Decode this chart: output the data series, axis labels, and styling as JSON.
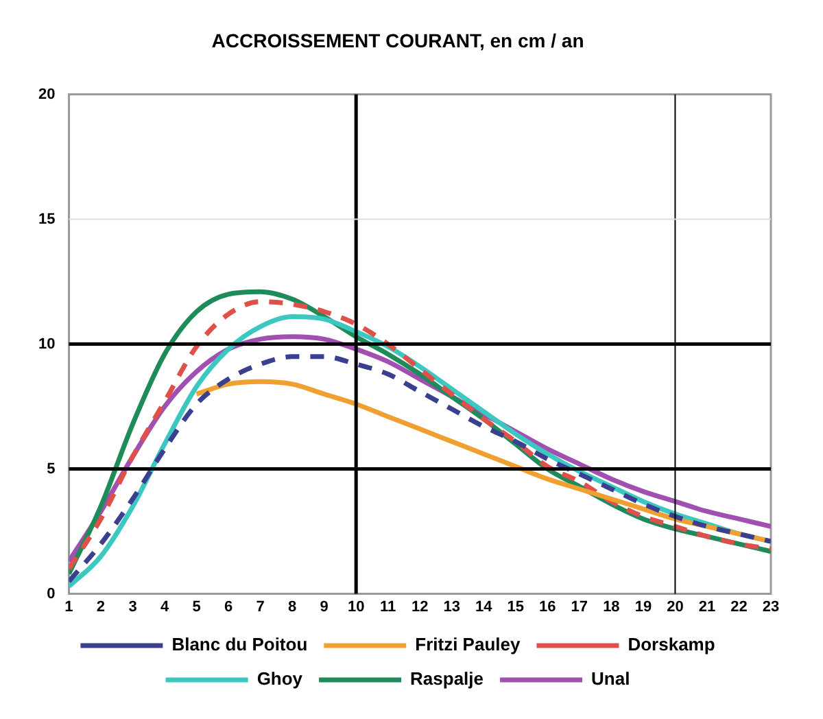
{
  "chart_data": {
    "type": "line",
    "title": "ACCROISSEMENT COURANT, en cm / an",
    "x": [
      1,
      2,
      3,
      4,
      5,
      6,
      7,
      8,
      9,
      10,
      11,
      12,
      13,
      14,
      15,
      16,
      17,
      18,
      19,
      20,
      21,
      22,
      23
    ],
    "xlim": [
      1,
      23
    ],
    "xticks": [
      1,
      2,
      3,
      4,
      5,
      6,
      7,
      8,
      9,
      10,
      11,
      12,
      13,
      14,
      15,
      16,
      17,
      18,
      19,
      20,
      21,
      22,
      23
    ],
    "ylim": [
      0,
      20
    ],
    "yticks": [
      0,
      5,
      10,
      15,
      20
    ],
    "legend": "bottom",
    "marker": "none",
    "ref_lines": [
      {
        "axis": "x",
        "value": 10,
        "color": "#000000"
      },
      {
        "axis": "x",
        "value": 20,
        "color": "#000000"
      },
      {
        "axis": "y",
        "value": 5,
        "color": "#000000"
      },
      {
        "axis": "y",
        "value": 10,
        "color": "#000000"
      },
      {
        "axis": "y",
        "value": 15,
        "color": "#dddddd"
      }
    ],
    "series": [
      {
        "name": "Blanc du Poitou",
        "color": "#3a3f8f",
        "line_style": "dashed",
        "values": [
          0.5,
          2.0,
          3.8,
          5.8,
          7.6,
          8.6,
          9.2,
          9.5,
          9.5,
          9.2,
          8.8,
          8.1,
          7.4,
          6.7,
          6.1,
          5.4,
          4.8,
          4.2,
          3.6,
          3.1,
          2.7,
          2.4,
          2.1
        ]
      },
      {
        "name": "Fritzi Pauley",
        "color": "#f0a030",
        "line_style": "solid",
        "values": [
          null,
          null,
          null,
          null,
          8.0,
          8.4,
          8.5,
          8.4,
          8.0,
          7.6,
          7.1,
          6.6,
          6.1,
          5.6,
          5.1,
          4.6,
          4.2,
          3.8,
          3.4,
          3.0,
          2.7,
          2.4,
          2.1
        ]
      },
      {
        "name": "Dorskamp",
        "color": "#e0504a",
        "line_style": "dashed",
        "values": [
          1.0,
          3.0,
          5.5,
          7.7,
          9.9,
          11.2,
          11.7,
          11.6,
          11.3,
          10.8,
          10.0,
          9.0,
          8.0,
          7.0,
          6.1,
          5.1,
          4.5,
          3.7,
          3.1,
          2.7,
          2.3,
          2.0,
          1.8
        ]
      },
      {
        "name": "Ghoy",
        "color": "#3cc8c0",
        "line_style": "solid",
        "values": [
          0.3,
          1.5,
          3.5,
          6.0,
          8.3,
          9.8,
          10.7,
          11.1,
          11.0,
          10.5,
          9.9,
          9.1,
          8.2,
          7.3,
          6.4,
          5.6,
          4.9,
          4.3,
          3.7,
          3.2,
          2.8,
          2.4,
          2.1
        ]
      },
      {
        "name": "Raspalje",
        "color": "#1f8a5a",
        "line_style": "solid",
        "values": [
          0.8,
          3.5,
          6.8,
          9.6,
          11.3,
          12.0,
          12.1,
          11.8,
          11.1,
          10.3,
          9.6,
          8.8,
          7.9,
          7.0,
          6.0,
          5.0,
          4.3,
          3.6,
          3.0,
          2.6,
          2.3,
          2.0,
          1.7
        ]
      },
      {
        "name": "Unal",
        "color": "#a050b0",
        "line_style": "solid",
        "values": [
          1.3,
          3.3,
          5.5,
          7.5,
          8.9,
          9.8,
          10.2,
          10.3,
          10.2,
          9.8,
          9.3,
          8.6,
          7.9,
          7.2,
          6.5,
          5.8,
          5.2,
          4.6,
          4.1,
          3.7,
          3.3,
          3.0,
          2.7
        ]
      }
    ]
  }
}
